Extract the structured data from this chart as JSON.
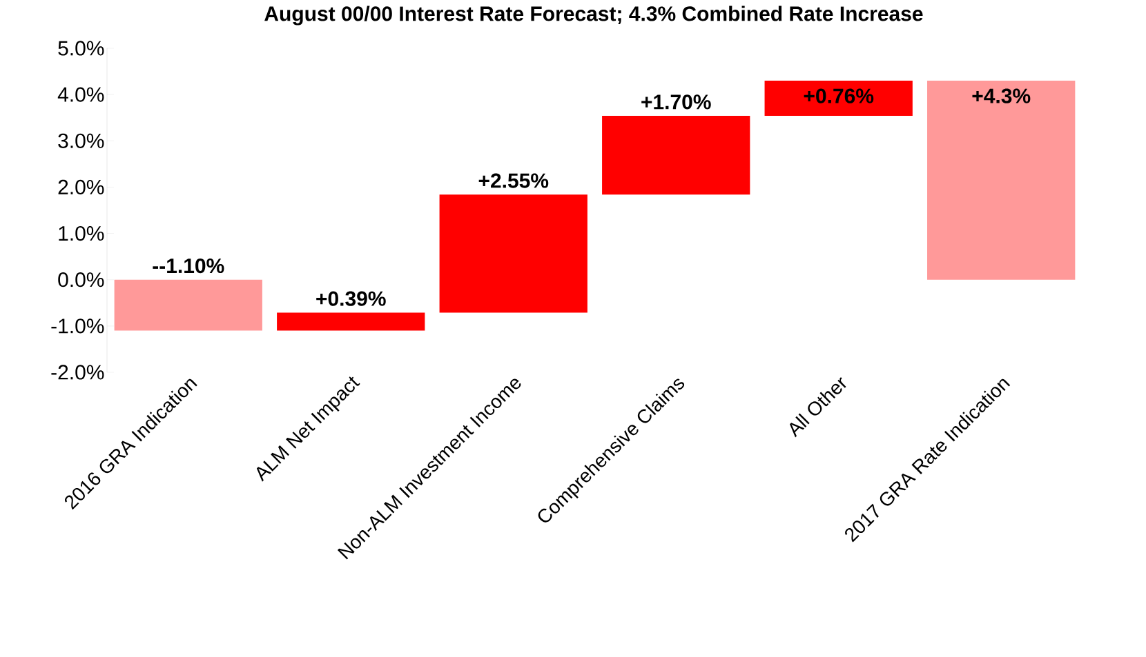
{
  "chart_data": {
    "type": "bar",
    "title": "August 00/00 Interest Rate Forecast; 4.3% Combined Rate Increase",
    "categories": [
      "2016 GRA Indication",
      "ALM Net Impact",
      "Non-ALM Investment Income",
      "Comprehensive Claims",
      "All Other",
      "2017 GRA Rate Indication"
    ],
    "values": [
      -1.1,
      0.39,
      2.55,
      1.7,
      0.76,
      4.3
    ],
    "base": [
      0,
      -1.1,
      -0.71,
      1.84,
      3.54,
      0
    ],
    "colors": [
      "#ff9999",
      "#ff0000",
      "#ff0000",
      "#ff0000",
      "#ff0000",
      "#ff9999"
    ],
    "value_labels": [
      "--1.10%",
      "+0.39%",
      "+2.55%",
      "+1.70%",
      "+0.76%",
      "+4.3%"
    ],
    "ylim": [
      -2.0,
      5.0
    ],
    "yticks": [
      {
        "value": -2,
        "label": "-2.0%"
      },
      {
        "value": -1,
        "label": "-1.0%"
      },
      {
        "value": 0,
        "label": "0.0%"
      },
      {
        "value": 1,
        "label": "1.0%"
      },
      {
        "value": 2,
        "label": "2.0%"
      },
      {
        "value": 3,
        "label": "3.0%"
      },
      {
        "value": 4,
        "label": "4.0%"
      },
      {
        "value": 5,
        "label": "5.0%"
      }
    ],
    "grid": false
  }
}
